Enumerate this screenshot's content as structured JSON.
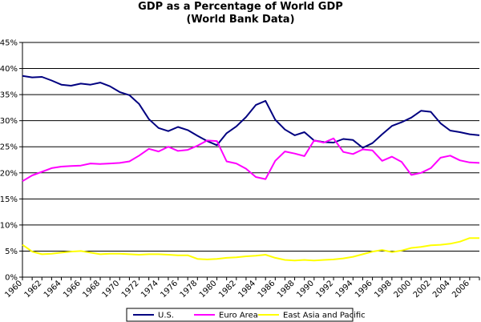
{
  "chart_data": {
    "type": "line",
    "title": "GDP as a Percentage of World GDP",
    "subtitle": "(World Bank Data)",
    "xlabel": "",
    "ylabel": "",
    "ylim": [
      0,
      45
    ],
    "yticks": [
      "0%",
      "5%",
      "10%",
      "15%",
      "20%",
      "25%",
      "30%",
      "35%",
      "40%",
      "45%"
    ],
    "xlim": [
      1960,
      2007
    ],
    "xticks": [
      "1960",
      "1962",
      "1964",
      "1966",
      "1968",
      "1970",
      "1972",
      "1974",
      "1976",
      "1978",
      "1980",
      "1982",
      "1984",
      "1986",
      "1988",
      "1990",
      "1992",
      "1994",
      "1996",
      "1998",
      "2000",
      "2002",
      "2004",
      "2006"
    ],
    "grid": "horizontal",
    "legend_position": "bottom",
    "x": [
      1960,
      1961,
      1962,
      1963,
      1964,
      1965,
      1966,
      1967,
      1968,
      1969,
      1970,
      1971,
      1972,
      1973,
      1974,
      1975,
      1976,
      1977,
      1978,
      1979,
      1980,
      1981,
      1982,
      1983,
      1984,
      1985,
      1986,
      1987,
      1988,
      1989,
      1990,
      1991,
      1992,
      1993,
      1994,
      1995,
      1996,
      1997,
      1998,
      1999,
      2000,
      2001,
      2002,
      2003,
      2004,
      2005,
      2006,
      2007
    ],
    "series": [
      {
        "name": "U.S.",
        "color": "#000080",
        "values": [
          38.6,
          38.3,
          38.4,
          37.7,
          36.9,
          36.7,
          37.1,
          36.9,
          37.3,
          36.6,
          35.5,
          34.9,
          33.2,
          30.3,
          28.6,
          28.0,
          28.8,
          28.2,
          27.1,
          26.1,
          25.3,
          27.6,
          28.9,
          30.7,
          33.0,
          33.8,
          30.2,
          28.3,
          27.2,
          27.8,
          26.2,
          25.9,
          25.8,
          26.5,
          26.3,
          24.8,
          25.7,
          27.4,
          29.0,
          29.7,
          30.6,
          31.9,
          31.7,
          29.5,
          28.1,
          27.8,
          27.4,
          27.2
        ],
        "label": "U.S."
      },
      {
        "name": "Euro Area",
        "color": "#FF00FF",
        "values": [
          18.4,
          19.5,
          20.2,
          20.9,
          21.2,
          21.3,
          21.4,
          21.8,
          21.7,
          21.8,
          21.9,
          22.2,
          23.3,
          24.6,
          24.1,
          25.0,
          24.2,
          24.4,
          25.2,
          26.2,
          26.1,
          22.2,
          21.8,
          20.8,
          19.2,
          18.8,
          22.3,
          24.1,
          23.7,
          23.2,
          26.2,
          25.8,
          26.6,
          24.0,
          23.6,
          24.5,
          24.3,
          22.3,
          23.1,
          22.1,
          19.6,
          20.0,
          20.9,
          22.9,
          23.3,
          22.4,
          22.0,
          21.9
        ],
        "label": "Euro Area"
      },
      {
        "name": "East Asia and Pacific",
        "color": "#FFFF00",
        "values": [
          6.2,
          4.9,
          4.4,
          4.5,
          4.7,
          4.9,
          5.0,
          4.7,
          4.4,
          4.5,
          4.5,
          4.4,
          4.3,
          4.4,
          4.4,
          4.3,
          4.2,
          4.2,
          3.5,
          3.4,
          3.5,
          3.7,
          3.8,
          4.0,
          4.1,
          4.3,
          3.7,
          3.3,
          3.2,
          3.3,
          3.2,
          3.3,
          3.4,
          3.6,
          3.9,
          4.4,
          4.9,
          5.2,
          4.8,
          5.1,
          5.6,
          5.8,
          6.1,
          6.2,
          6.4,
          6.8,
          7.5,
          7.5
        ],
        "label": "East Asia and Pacific"
      }
    ]
  }
}
